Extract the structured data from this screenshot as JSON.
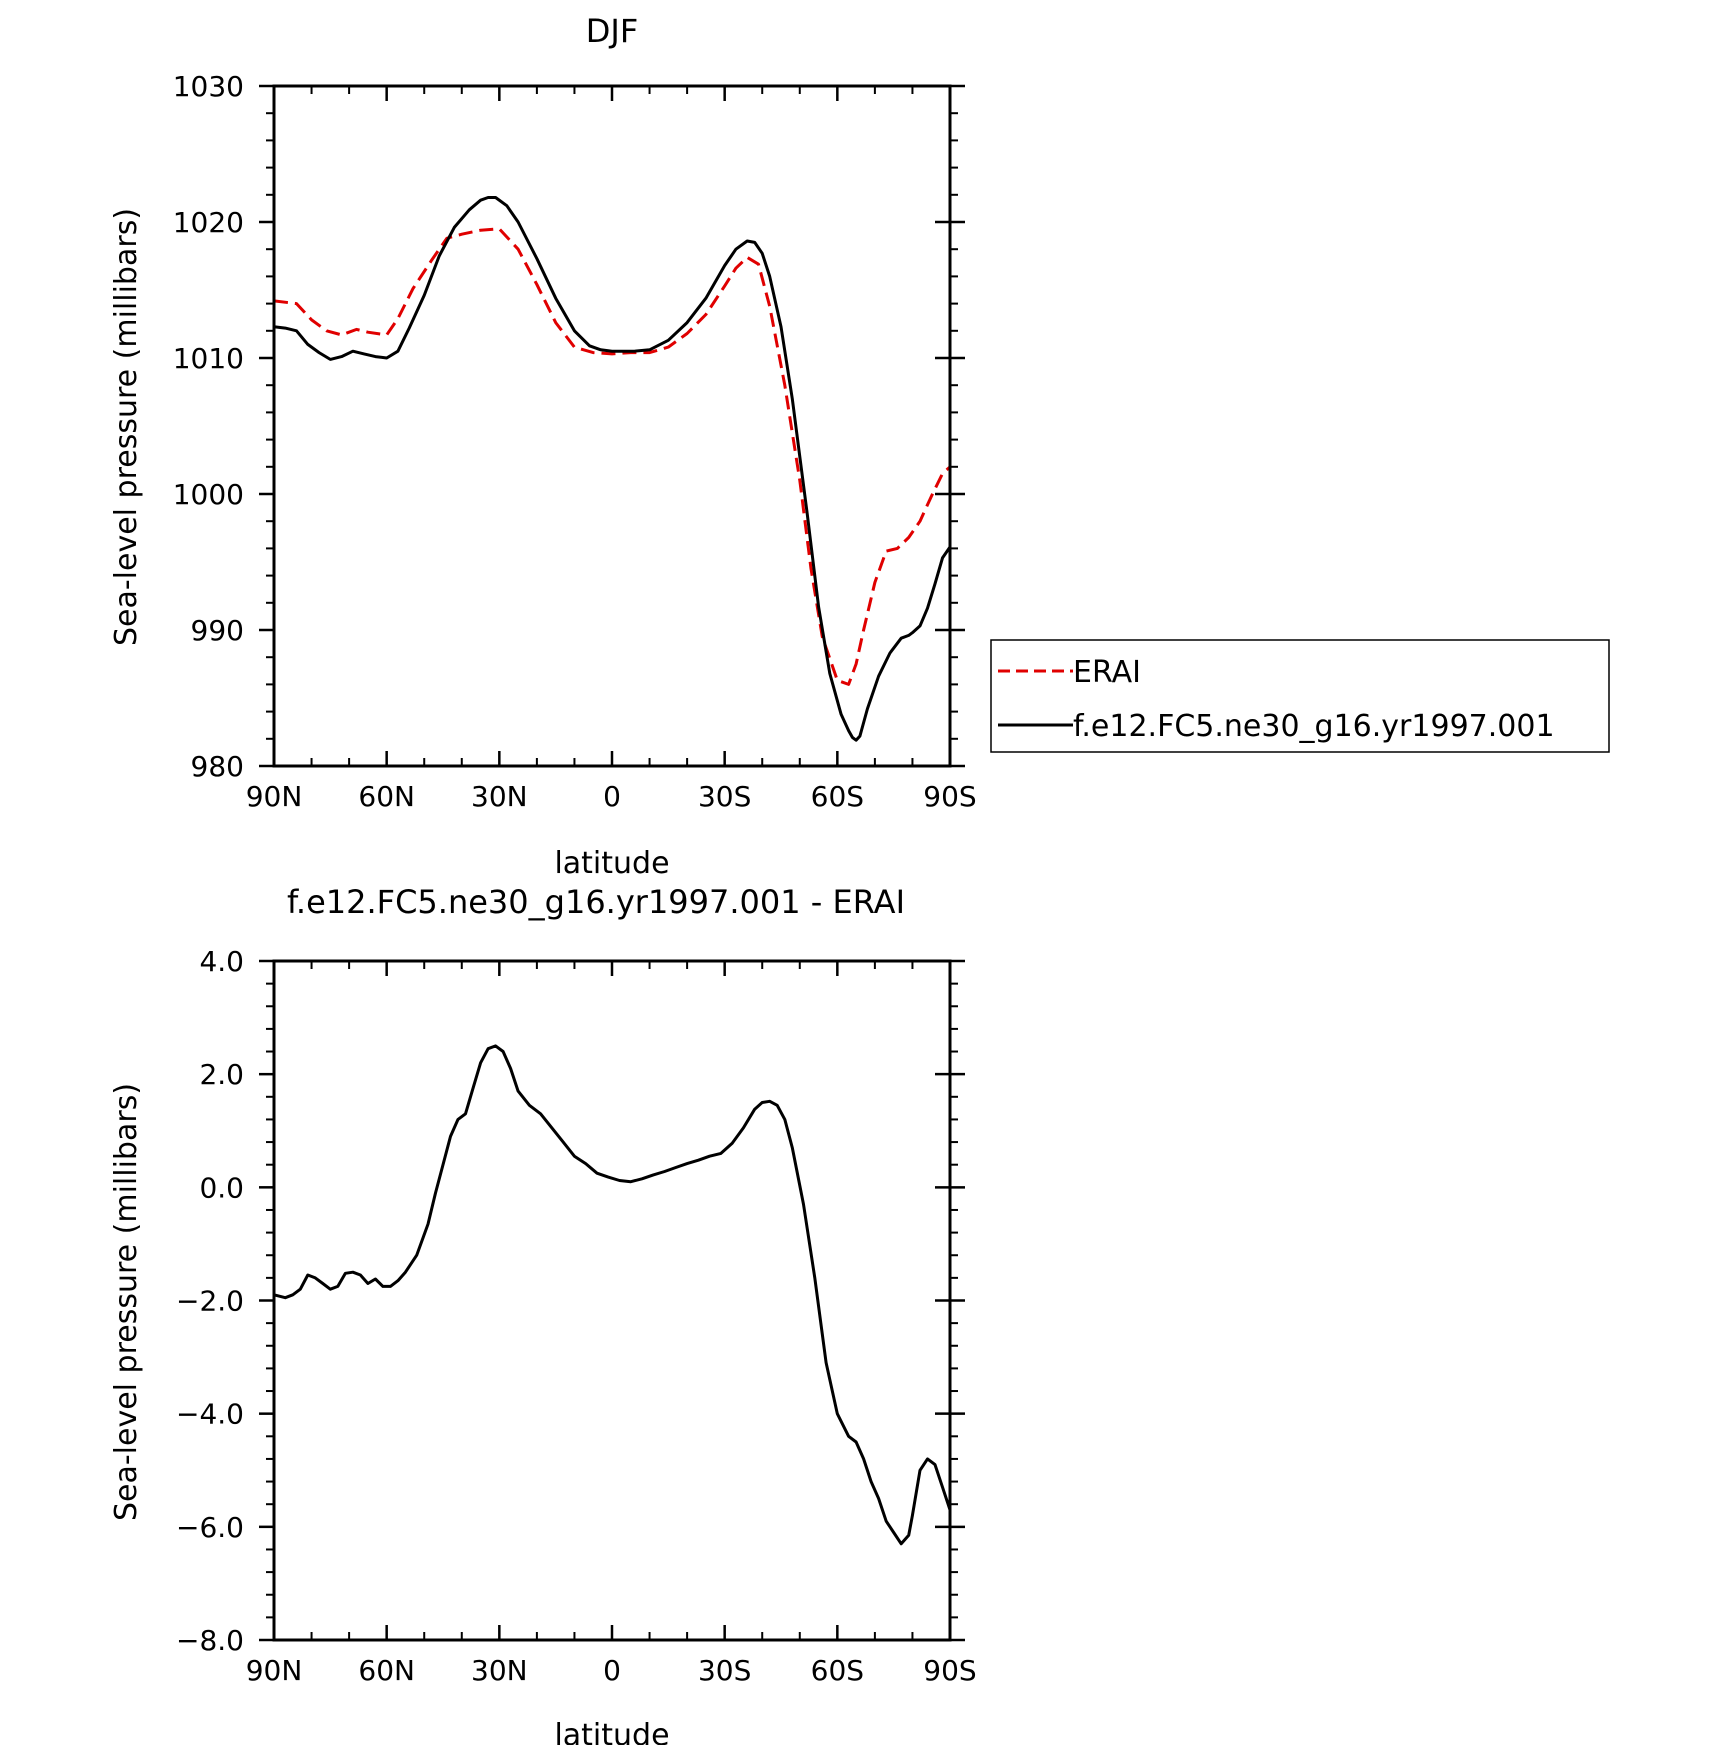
{
  "chart_data": [
    {
      "type": "line",
      "title": "DJF",
      "xlabel": "latitude",
      "ylabel": "Sea-level pressure (millibars)",
      "ylim": [
        980,
        1030
      ],
      "xlim": [
        90,
        -90
      ],
      "x_ticks": [
        90,
        60,
        30,
        0,
        -30,
        -60,
        -90
      ],
      "x_tick_labels": [
        "90N",
        "60N",
        "30N",
        "0",
        "30S",
        "60S",
        "90S"
      ],
      "y_ticks": [
        980,
        990,
        1000,
        1010,
        1020,
        1030
      ],
      "y_tick_labels": [
        "980",
        "990",
        "1000",
        "1010",
        "1020",
        "1030"
      ],
      "legend_position": "right",
      "series": [
        {
          "name": "ERAI",
          "color": "#e00000",
          "style": "dashed",
          "x": [
            90,
            84,
            80,
            76,
            72,
            68,
            65,
            60,
            57,
            53,
            48,
            44,
            40,
            35,
            30,
            25,
            20,
            15,
            10,
            5,
            0,
            -5,
            -10,
            -15,
            -20,
            -25,
            -30,
            -33,
            -36,
            -39,
            -42,
            -46,
            -50,
            -53,
            -56,
            -60,
            -63,
            -65,
            -67,
            -70,
            -73,
            -76,
            -79,
            -82,
            -85,
            -88,
            -90
          ],
          "y": [
            1014.2,
            1014.0,
            1012.8,
            1012.0,
            1011.7,
            1012.1,
            1011.9,
            1011.7,
            1012.9,
            1015.1,
            1017.2,
            1018.8,
            1019.1,
            1019.4,
            1019.5,
            1018.0,
            1015.4,
            1012.6,
            1010.8,
            1010.4,
            1010.3,
            1010.4,
            1010.4,
            1010.8,
            1011.8,
            1013.2,
            1015.3,
            1016.6,
            1017.4,
            1016.9,
            1013.8,
            1008.0,
            1001.0,
            994.5,
            989.5,
            986.3,
            986.0,
            987.5,
            990.0,
            993.5,
            995.8,
            996.0,
            996.8,
            998.0,
            999.8,
            1001.5,
            1002.0
          ]
        },
        {
          "name": "f.e12.FC5.ne30_g16.yr1997.001",
          "color": "#000000",
          "style": "solid",
          "x": [
            90,
            87,
            84,
            81,
            78,
            75,
            72,
            69,
            66,
            63,
            60,
            57,
            54,
            50,
            46,
            42,
            38,
            35,
            33,
            31,
            28,
            25,
            20,
            15,
            10,
            6,
            3,
            0,
            -3,
            -6,
            -10,
            -15,
            -20,
            -25,
            -30,
            -33,
            -36,
            -38,
            -40,
            -42,
            -45,
            -48,
            -52,
            -55,
            -58,
            -61,
            -63,
            -64,
            -65,
            -66,
            -68,
            -71,
            -74,
            -77,
            -79,
            -80,
            -82,
            -84,
            -86,
            -88,
            -90
          ],
          "y": [
            1012.3,
            1012.2,
            1012.0,
            1011.0,
            1010.4,
            1009.9,
            1010.1,
            1010.5,
            1010.3,
            1010.1,
            1010.0,
            1010.5,
            1012.2,
            1014.6,
            1017.5,
            1019.6,
            1020.9,
            1021.6,
            1021.8,
            1021.8,
            1021.2,
            1020.0,
            1017.3,
            1014.4,
            1012.0,
            1010.9,
            1010.6,
            1010.5,
            1010.5,
            1010.5,
            1010.6,
            1011.3,
            1012.6,
            1014.4,
            1016.8,
            1018.0,
            1018.6,
            1018.5,
            1017.7,
            1016.0,
            1012.3,
            1007.0,
            998.5,
            991.7,
            986.8,
            983.8,
            982.6,
            982.1,
            981.9,
            982.2,
            984.2,
            986.6,
            988.3,
            989.4,
            989.6,
            989.8,
            990.3,
            991.6,
            993.4,
            995.3,
            996.1
          ]
        }
      ]
    },
    {
      "type": "line",
      "title": "f.e12.FC5.ne30_g16.yr1997.001 - ERAI",
      "xlabel": "latitude",
      "ylabel": "Sea-level pressure (millibars)",
      "ylim": [
        -8.0,
        4.0
      ],
      "xlim": [
        90,
        -90
      ],
      "x_ticks": [
        90,
        60,
        30,
        0,
        -30,
        -60,
        -90
      ],
      "x_tick_labels": [
        "90N",
        "60N",
        "30N",
        "0",
        "30S",
        "60S",
        "90S"
      ],
      "y_ticks": [
        -8.0,
        -6.0,
        -4.0,
        -2.0,
        0.0,
        2.0,
        4.0
      ],
      "y_tick_labels": [
        "−8.0",
        "−6.0",
        "−4.0",
        "−2.0",
        "0.0",
        "2.0",
        "4.0"
      ],
      "series": [
        {
          "color": "#000000",
          "style": "solid",
          "x": [
            90,
            87,
            85,
            83,
            81,
            79,
            77,
            75,
            73,
            71,
            69,
            67,
            65,
            63,
            61,
            59,
            57,
            55,
            52,
            49,
            47,
            45,
            43,
            41,
            39,
            37,
            35,
            33,
            31,
            29,
            27,
            25,
            22,
            19,
            16,
            13,
            10,
            7,
            4,
            1,
            -2,
            -5,
            -8,
            -11,
            -14,
            -17,
            -20,
            -23,
            -26,
            -29,
            -32,
            -35,
            -38,
            -40,
            -42,
            -44,
            -46,
            -48,
            -51,
            -54,
            -57,
            -60,
            -63,
            -65,
            -67,
            -69,
            -71,
            -73,
            -75,
            -77,
            -79,
            -80,
            -82,
            -84,
            -86,
            -88,
            -90
          ],
          "y": [
            -1.9,
            -1.95,
            -1.9,
            -1.8,
            -1.55,
            -1.6,
            -1.7,
            -1.8,
            -1.75,
            -1.52,
            -1.5,
            -1.55,
            -1.7,
            -1.62,
            -1.75,
            -1.75,
            -1.65,
            -1.5,
            -1.2,
            -0.65,
            -0.1,
            0.4,
            0.9,
            1.2,
            1.3,
            1.75,
            2.2,
            2.45,
            2.5,
            2.4,
            2.1,
            1.7,
            1.45,
            1.3,
            1.05,
            0.8,
            0.55,
            0.42,
            0.25,
            0.18,
            0.12,
            0.1,
            0.15,
            0.22,
            0.28,
            0.35,
            0.42,
            0.48,
            0.55,
            0.6,
            0.78,
            1.05,
            1.38,
            1.5,
            1.52,
            1.45,
            1.2,
            0.7,
            -0.3,
            -1.6,
            -3.1,
            -4.0,
            -4.4,
            -4.5,
            -4.8,
            -5.2,
            -5.5,
            -5.9,
            -6.1,
            -6.3,
            -6.15,
            -5.8,
            -5.0,
            -4.8,
            -4.9,
            -5.3,
            -5.7
          ]
        }
      ]
    }
  ]
}
